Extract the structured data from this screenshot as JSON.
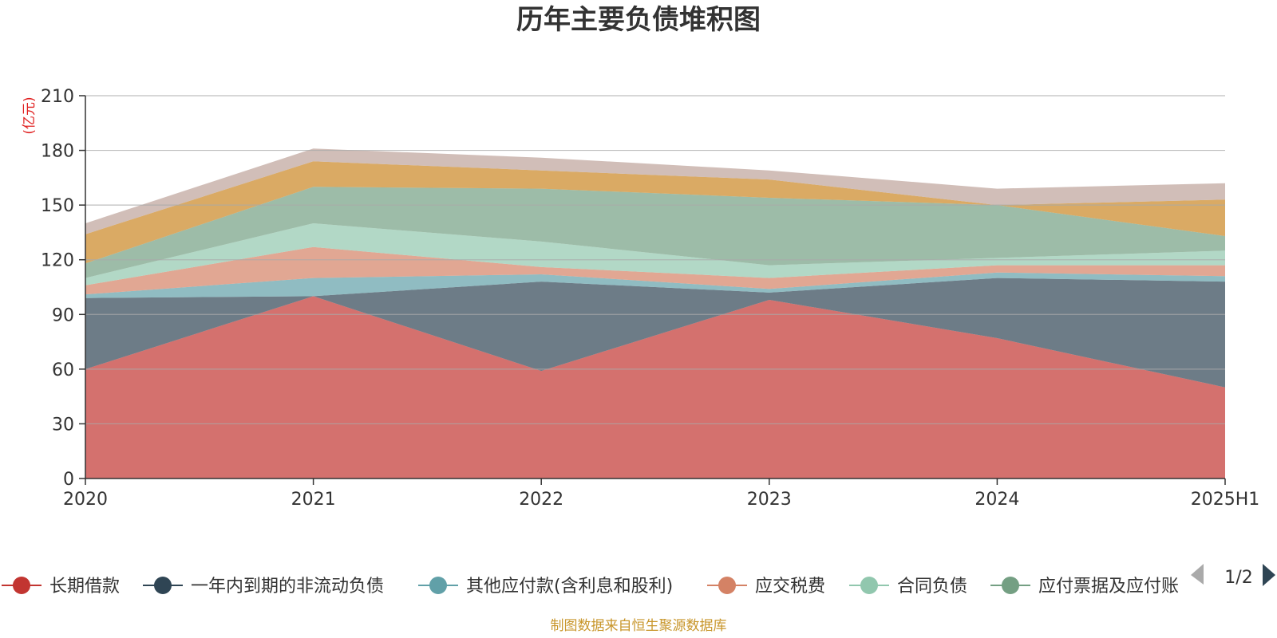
{
  "chart_data": {
    "type": "area",
    "stacked": true,
    "title": "历年主要负债堆积图",
    "unit_label": "(亿元)",
    "categories": [
      "2020",
      "2021",
      "2022",
      "2023",
      "2024",
      "2025H1"
    ],
    "ylim": [
      0,
      210
    ],
    "yticks": [
      0,
      30,
      60,
      90,
      120,
      150,
      180,
      210
    ],
    "grid": true,
    "legend_position": "bottom",
    "legend_page": "1/2",
    "series": [
      {
        "name": "长期借款",
        "color": "#c23531",
        "values": [
          60,
          100,
          59,
          98,
          77,
          50
        ]
      },
      {
        "name": "一年内到期的非流动负债",
        "color": "#2f4554",
        "values": [
          39,
          0,
          49,
          4,
          33,
          58
        ]
      },
      {
        "name": "其他应付款(含利息和股利)",
        "color": "#61a0a8",
        "values": [
          2,
          10,
          4,
          2,
          3,
          3
        ]
      },
      {
        "name": "应交税费",
        "color": "#d48265",
        "values": [
          5,
          17,
          4,
          6,
          4,
          6
        ]
      },
      {
        "name": "合同负债",
        "color": "#91c7ae",
        "values": [
          4,
          13,
          14,
          7,
          4,
          8
        ]
      },
      {
        "name": "应付票据及应付账款",
        "color": "#749f83",
        "values": [
          8,
          20,
          29,
          37,
          29,
          8
        ]
      },
      {
        "name": "",
        "color": "#ca8622",
        "values": [
          16,
          14,
          10,
          10,
          0,
          20
        ]
      },
      {
        "name": "",
        "color": "#bda29a",
        "values": [
          6,
          7,
          7,
          5,
          9,
          9
        ]
      }
    ],
    "legend_visible": [
      "长期借款",
      "一年内到期的非流动负债",
      "其他应付款(含利息和股利)",
      "应交税费",
      "合同负债",
      "应付票据及应付账"
    ],
    "source_note": "制图数据来自恒生聚源数据库"
  }
}
